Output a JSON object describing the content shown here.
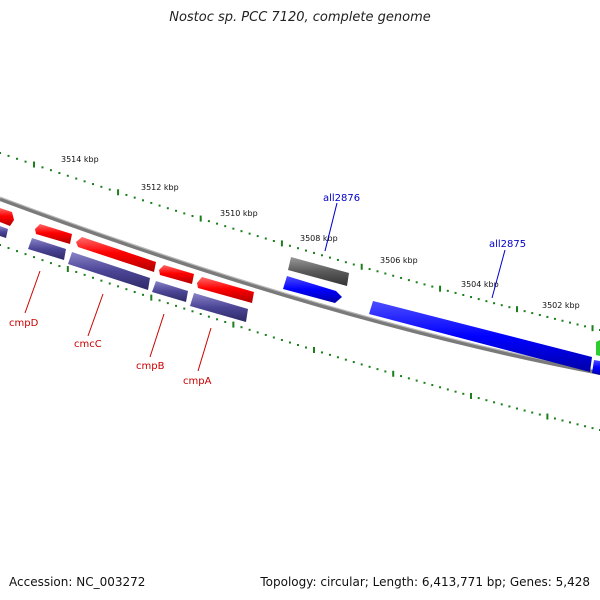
{
  "title": "Nostoc sp. PCC 7120, complete genome",
  "footer": {
    "accession": "Accession: NC_003272",
    "stats": "Topology: circular; Length: 6,413,771 bp; Genes: 5,428"
  },
  "colors": {
    "backbone": "#7a7a7a",
    "forward_gene": "#ff0000",
    "reverse_operon": "#4b4596",
    "blue_gene": "#0000ff",
    "grey_gene": "#5a5a5a",
    "tick": "#1a7f1a",
    "label_red": "#cc0000",
    "label_blue": "#0000cc"
  },
  "ticks": [
    "3514 kbp",
    "3512 kbp",
    "3510 kbp",
    "3508 kbp",
    "3506 kbp",
    "3504 kbp",
    "3502 kbp"
  ],
  "genes": [
    {
      "name": "cmpD",
      "color": "label_red"
    },
    {
      "name": "cmcC",
      "color": "label_red"
    },
    {
      "name": "cmpB",
      "color": "label_red"
    },
    {
      "name": "cmpA",
      "color": "label_red"
    },
    {
      "name": "all2876",
      "color": "label_blue"
    },
    {
      "name": "all2875",
      "color": "label_blue"
    }
  ]
}
